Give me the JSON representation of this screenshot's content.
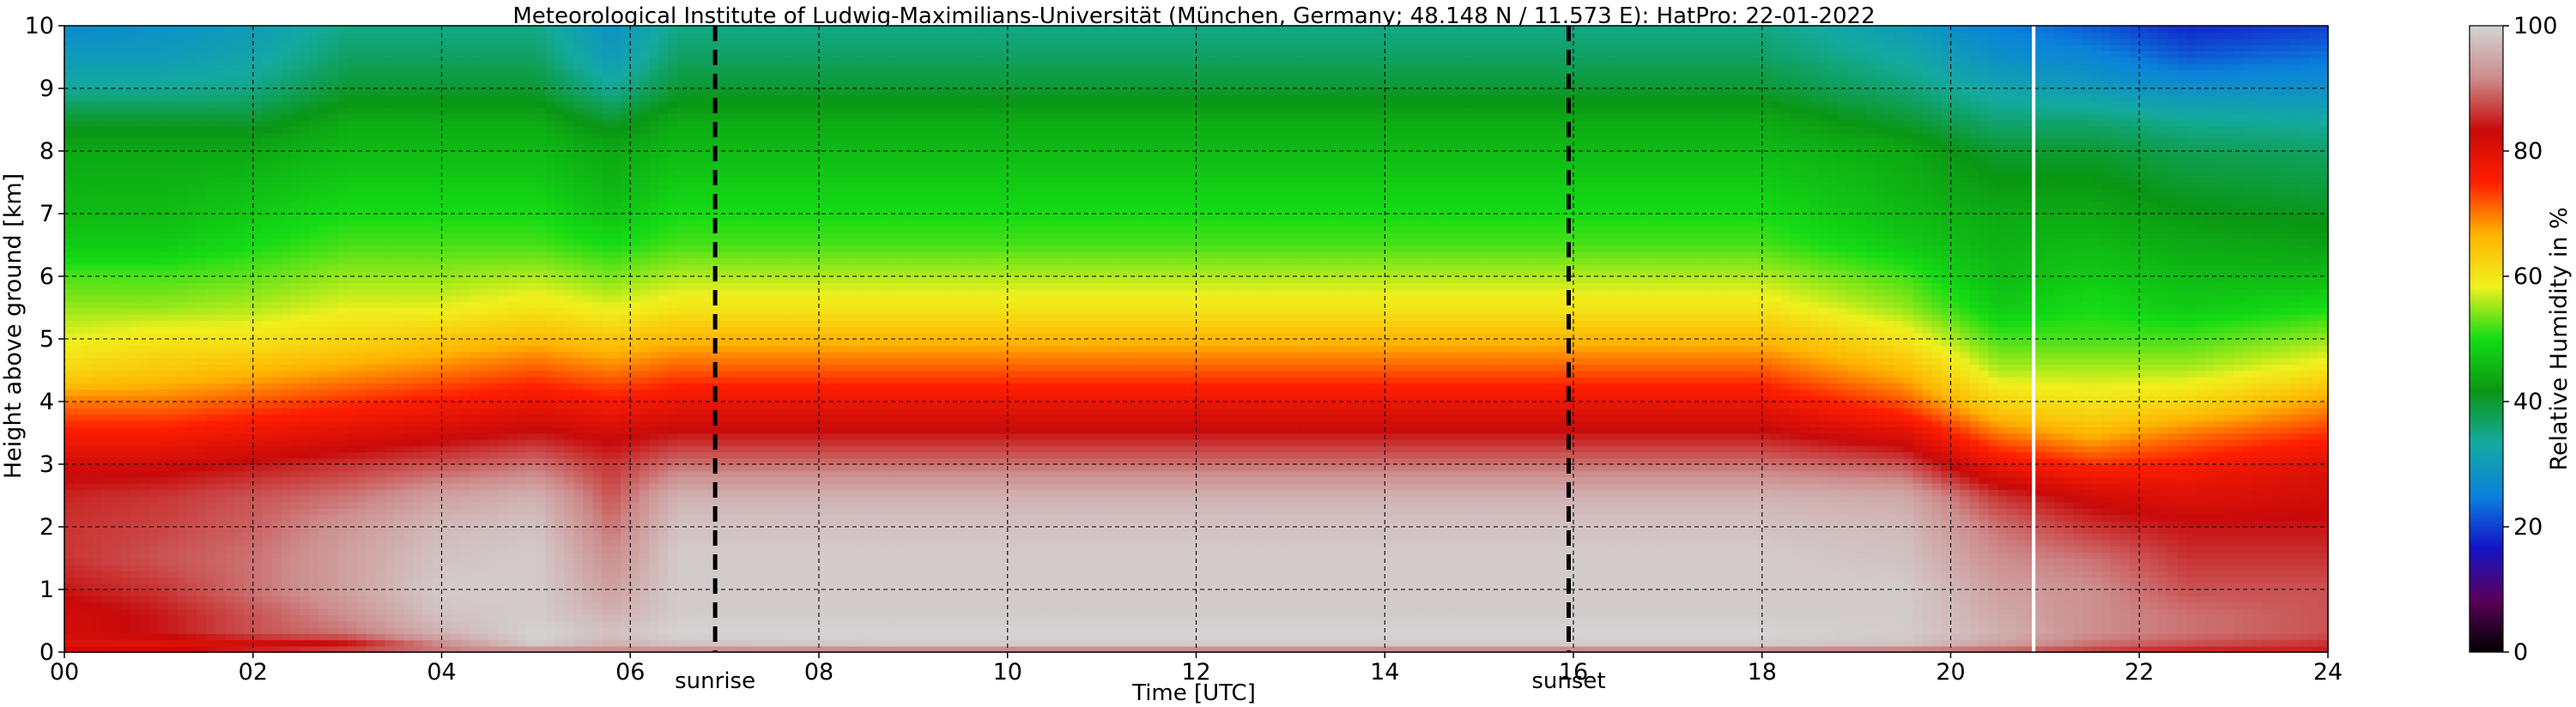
{
  "chart_data": {
    "type": "heatmap",
    "title": "Meteorological Institute of Ludwig-Maximilians-Universität (München, Germany; 48.148 N / 11.573 E):    HatPro: 22-01-2022",
    "xlabel": "Time [UTC]",
    "ylabel": "Height above ground [km]",
    "xlim": [
      0,
      24
    ],
    "ylim": [
      0,
      10
    ],
    "xticks": [
      "00",
      "02",
      "04",
      "06",
      "08",
      "10",
      "12",
      "14",
      "16",
      "18",
      "20",
      "22",
      "24"
    ],
    "yticks": [
      "0",
      "1",
      "2",
      "3",
      "4",
      "5",
      "6",
      "7",
      "8",
      "9",
      "10"
    ],
    "grid": true,
    "colorbar": {
      "label": "Relative Humidity in %",
      "range": [
        0,
        100
      ],
      "ticks": [
        "0",
        "20",
        "40",
        "60",
        "80",
        "100"
      ],
      "colors": [
        "#000000",
        "#5a005a",
        "#1414c8",
        "#0a82dc",
        "#14aaa0",
        "#0a9614",
        "#14dc14",
        "#f0f01e",
        "#ffb400",
        "#ff1e00",
        "#c80a0a",
        "#cd8c8c",
        "#d4d4d4"
      ]
    },
    "markers": [
      {
        "label": "sunrise",
        "time": 6.9
      },
      {
        "label": "sunset",
        "time": 15.95
      }
    ],
    "data_gap_time": 20.88,
    "profile_heights_km": [
      0.0,
      0.15,
      0.3,
      0.6,
      1.0,
      1.5,
      2.0,
      2.5,
      3.0,
      3.5,
      4.0,
      4.5,
      5.0,
      5.5,
      6.0,
      6.5,
      7.0,
      7.5,
      8.0,
      8.5,
      9.0,
      9.5,
      10.0
    ],
    "profiles": [
      {
        "time": 0.0,
        "rh": [
          84,
          80,
          82,
          82,
          84,
          86,
          86,
          85,
          82,
          76,
          70,
          62,
          58,
          55,
          52,
          48,
          46,
          45,
          44,
          40,
          34,
          30,
          27
        ]
      },
      {
        "time": 1.0,
        "rh": [
          84,
          80,
          84,
          84,
          86,
          88,
          87,
          86,
          82,
          76,
          70,
          64,
          60,
          55,
          52,
          48,
          46,
          45,
          44,
          40,
          34,
          30,
          28
        ]
      },
      {
        "time": 2.0,
        "rh": [
          86,
          82,
          88,
          88,
          90,
          90,
          89,
          88,
          84,
          78,
          72,
          66,
          60,
          56,
          53,
          50,
          48,
          46,
          44,
          40,
          35,
          32,
          30
        ]
      },
      {
        "time": 3.0,
        "rh": [
          88,
          84,
          90,
          92,
          94,
          94,
          93,
          90,
          86,
          80,
          74,
          68,
          62,
          58,
          55,
          52,
          50,
          48,
          46,
          44,
          40,
          37,
          35
        ]
      },
      {
        "time": 4.0,
        "rh": [
          90,
          92,
          96,
          98,
          99,
          98,
          97,
          94,
          88,
          82,
          76,
          70,
          64,
          58,
          55,
          52,
          50,
          48,
          46,
          44,
          40,
          37,
          35
        ]
      },
      {
        "time": 5.0,
        "rh": [
          90,
          99,
          100,
          99,
          99,
          99,
          98,
          96,
          90,
          84,
          78,
          72,
          66,
          60,
          56,
          52,
          50,
          48,
          46,
          44,
          40,
          37,
          35
        ]
      },
      {
        "time": 5.8,
        "rh": [
          90,
          96,
          98,
          96,
          94,
          92,
          90,
          88,
          86,
          82,
          76,
          70,
          64,
          58,
          54,
          50,
          47,
          45,
          44,
          40,
          34,
          30,
          28
        ]
      },
      {
        "time": 6.5,
        "rh": [
          90,
          98,
          100,
          99,
          99,
          99,
          98,
          96,
          90,
          84,
          78,
          72,
          66,
          60,
          56,
          52,
          50,
          48,
          46,
          44,
          40,
          37,
          35
        ]
      },
      {
        "time": 9.0,
        "rh": [
          88,
          99,
          100,
          99,
          99,
          99,
          98,
          96,
          90,
          84,
          78,
          72,
          66,
          60,
          56,
          52,
          50,
          48,
          46,
          44,
          40,
          37,
          35
        ]
      },
      {
        "time": 12.0,
        "rh": [
          88,
          99,
          100,
          99,
          99,
          99,
          98,
          96,
          90,
          84,
          78,
          72,
          66,
          60,
          56,
          52,
          50,
          48,
          46,
          44,
          40,
          37,
          35
        ]
      },
      {
        "time": 15.0,
        "rh": [
          88,
          99,
          100,
          99,
          99,
          99,
          98,
          96,
          90,
          84,
          78,
          72,
          66,
          60,
          56,
          52,
          50,
          48,
          46,
          44,
          40,
          37,
          35
        ]
      },
      {
        "time": 18.0,
        "rh": [
          88,
          99,
          100,
          99,
          99,
          99,
          98,
          96,
          90,
          84,
          78,
          72,
          66,
          60,
          56,
          52,
          50,
          48,
          46,
          44,
          40,
          37,
          35
        ]
      },
      {
        "time": 19.5,
        "rh": [
          88,
          98,
          99,
          99,
          99,
          98,
          97,
          95,
          88,
          80,
          72,
          66,
          60,
          55,
          52,
          48,
          46,
          45,
          44,
          40,
          36,
          33,
          30
        ]
      },
      {
        "time": 20.5,
        "rh": [
          88,
          94,
          96,
          95,
          94,
          92,
          90,
          86,
          78,
          70,
          62,
          56,
          52,
          48,
          46,
          45,
          44,
          42,
          40,
          36,
          32,
          28,
          25
        ]
      },
      {
        "time": 21.5,
        "rh": [
          86,
          90,
          92,
          92,
          92,
          90,
          86,
          82,
          74,
          66,
          60,
          56,
          52,
          50,
          48,
          46,
          44,
          42,
          40,
          36,
          30,
          26,
          22
        ]
      },
      {
        "time": 22.5,
        "rh": [
          84,
          88,
          90,
          90,
          88,
          86,
          84,
          80,
          76,
          70,
          62,
          56,
          52,
          48,
          46,
          44,
          42,
          40,
          38,
          34,
          28,
          22,
          18
        ]
      },
      {
        "time": 24.0,
        "rh": [
          84,
          86,
          88,
          88,
          88,
          86,
          84,
          82,
          80,
          74,
          68,
          60,
          55,
          50,
          46,
          43,
          41,
          39,
          37,
          33,
          28,
          24,
          20
        ]
      }
    ]
  }
}
